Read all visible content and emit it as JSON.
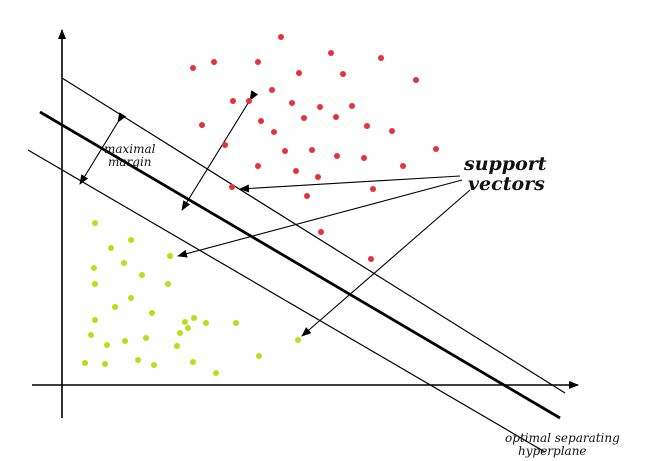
{
  "labels": {
    "margin_line1": "maximal",
    "margin_line2": "margin",
    "support_line1": "support",
    "support_line2": "vectors",
    "hyperplane_line1": "optimal separating",
    "hyperplane_line2": "hyperplane"
  },
  "colors": {
    "class_positive": "#e8323a",
    "class_negative": "#b6e01c",
    "line": "#000000",
    "background": "#ffffff"
  }
}
